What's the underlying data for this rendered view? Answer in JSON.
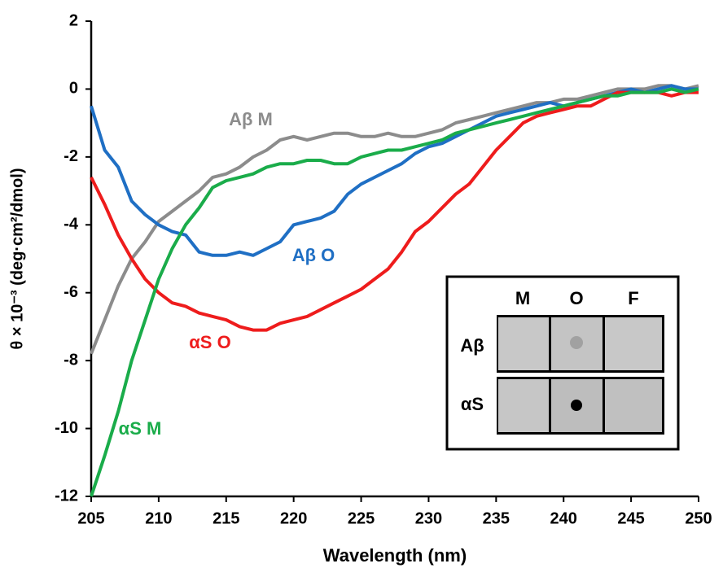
{
  "chart_data": {
    "type": "line",
    "x_label": "Wavelength (nm)",
    "y_label": "θ × 10⁻³ (deg·cm²/dmol)",
    "xlim": [
      205,
      250
    ],
    "xticks": [
      205,
      210,
      215,
      220,
      225,
      230,
      235,
      240,
      245,
      250
    ],
    "ylim": [
      -12,
      2
    ],
    "yticks": [
      -12,
      -10,
      -8,
      -6,
      -4,
      -2,
      0,
      2
    ],
    "grid": false,
    "x": [
      205,
      206,
      207,
      208,
      209,
      210,
      211,
      212,
      213,
      214,
      215,
      216,
      217,
      218,
      219,
      220,
      221,
      222,
      223,
      224,
      225,
      226,
      227,
      228,
      229,
      230,
      231,
      232,
      233,
      234,
      235,
      236,
      237,
      238,
      239,
      240,
      241,
      242,
      243,
      244,
      245,
      246,
      247,
      248,
      249,
      250
    ],
    "series": [
      {
        "name": "Aβ M",
        "color": "#8c8c8c",
        "values": [
          -7.8,
          -6.8,
          -5.8,
          -5.0,
          -4.5,
          -3.9,
          -3.6,
          -3.3,
          -3.0,
          -2.6,
          -2.5,
          -2.3,
          -2.0,
          -1.8,
          -1.5,
          -1.4,
          -1.5,
          -1.4,
          -1.3,
          -1.3,
          -1.4,
          -1.4,
          -1.3,
          -1.4,
          -1.4,
          -1.3,
          -1.2,
          -1.0,
          -0.9,
          -0.8,
          -0.7,
          -0.6,
          -0.5,
          -0.4,
          -0.4,
          -0.3,
          -0.3,
          -0.2,
          -0.1,
          0,
          0,
          0,
          0.1,
          0.1,
          0,
          0.1
        ]
      },
      {
        "name": "Aβ O",
        "color": "#1f6fc4",
        "values": [
          -0.5,
          -1.8,
          -2.3,
          -3.3,
          -3.7,
          -4.0,
          -4.2,
          -4.3,
          -4.8,
          -4.9,
          -4.9,
          -4.8,
          -4.9,
          -4.7,
          -4.5,
          -4.0,
          -3.9,
          -3.8,
          -3.6,
          -3.1,
          -2.8,
          -2.6,
          -2.4,
          -2.2,
          -1.9,
          -1.7,
          -1.6,
          -1.4,
          -1.2,
          -1.0,
          -0.8,
          -0.7,
          -0.6,
          -0.5,
          -0.4,
          -0.5,
          -0.4,
          -0.3,
          -0.2,
          -0.1,
          0,
          -0.1,
          0,
          0.1,
          0,
          0
        ]
      },
      {
        "name": "αS O",
        "color": "#ee1c1c",
        "values": [
          -2.6,
          -3.4,
          -4.3,
          -5.0,
          -5.6,
          -6.0,
          -6.3,
          -6.4,
          -6.6,
          -6.7,
          -6.8,
          -7.0,
          -7.1,
          -7.1,
          -6.9,
          -6.8,
          -6.7,
          -6.5,
          -6.3,
          -6.1,
          -5.9,
          -5.6,
          -5.3,
          -4.8,
          -4.2,
          -3.9,
          -3.5,
          -3.1,
          -2.8,
          -2.3,
          -1.8,
          -1.4,
          -1.0,
          -0.8,
          -0.7,
          -0.6,
          -0.5,
          -0.5,
          -0.3,
          -0.1,
          -0.1,
          -0.1,
          -0.1,
          -0.2,
          -0.1,
          -0.1
        ]
      },
      {
        "name": "αS M",
        "color": "#1aac4a",
        "values": [
          -12,
          -10.8,
          -9.5,
          -8.0,
          -6.8,
          -5.6,
          -4.7,
          -4.0,
          -3.5,
          -2.9,
          -2.7,
          -2.6,
          -2.5,
          -2.3,
          -2.2,
          -2.2,
          -2.1,
          -2.1,
          -2.2,
          -2.2,
          -2.0,
          -1.9,
          -1.8,
          -1.8,
          -1.7,
          -1.6,
          -1.5,
          -1.3,
          -1.2,
          -1.1,
          -1.0,
          -0.9,
          -0.8,
          -0.7,
          -0.6,
          -0.5,
          -0.4,
          -0.3,
          -0.2,
          -0.2,
          -0.1,
          -0.1,
          -0.1,
          0,
          -0.1,
          0
        ]
      }
    ],
    "inset": {
      "columns": [
        "M",
        "O",
        "F"
      ],
      "rows": [
        "Aβ",
        "αS"
      ]
    }
  }
}
